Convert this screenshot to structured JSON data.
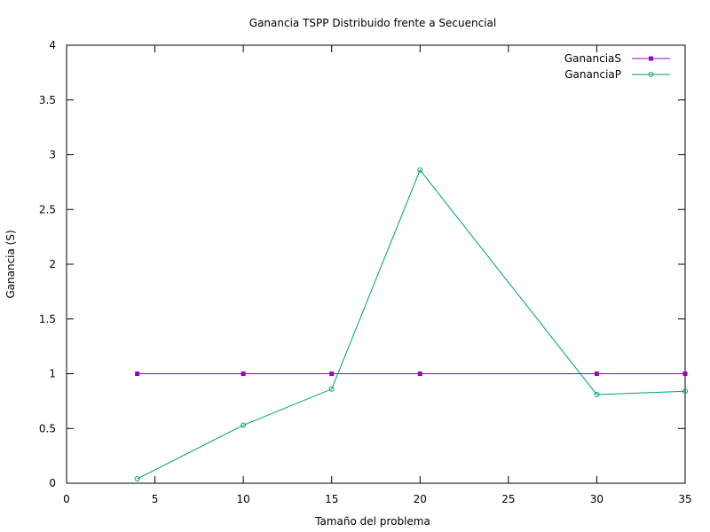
{
  "chart_data": {
    "type": "line",
    "title": "Ganancia TSPP Distribuido frente a Secuencial",
    "xlabel": "Tamaño del problema",
    "ylabel": "Ganancia (S)",
    "xlim": [
      0,
      35
    ],
    "ylim": [
      0,
      4
    ],
    "xticks": [
      0,
      5,
      10,
      15,
      20,
      25,
      30,
      35
    ],
    "yticks": [
      0,
      0.5,
      1,
      1.5,
      2,
      2.5,
      3,
      3.5,
      4
    ],
    "xtick_labels": [
      "0",
      "5",
      "10",
      "15",
      "20",
      "25",
      "30",
      "35"
    ],
    "ytick_labels": [
      "0",
      "0.5",
      "1",
      "1.5",
      "2",
      "2.5",
      "3",
      "3.5",
      "4"
    ],
    "grid": false,
    "legend_position": "top-right",
    "series": [
      {
        "name": "GananciaS",
        "color": "#9400d3",
        "marker": "filled-square",
        "x": [
          4,
          10,
          15,
          20,
          30,
          35
        ],
        "y": [
          1,
          1,
          1,
          1,
          1,
          1
        ]
      },
      {
        "name": "GananciaP",
        "color": "#009e73",
        "marker": "open-circle",
        "x": [
          4,
          10,
          15,
          20,
          30,
          35
        ],
        "y": [
          0.04,
          0.53,
          0.86,
          2.86,
          0.81,
          0.84
        ]
      }
    ]
  }
}
